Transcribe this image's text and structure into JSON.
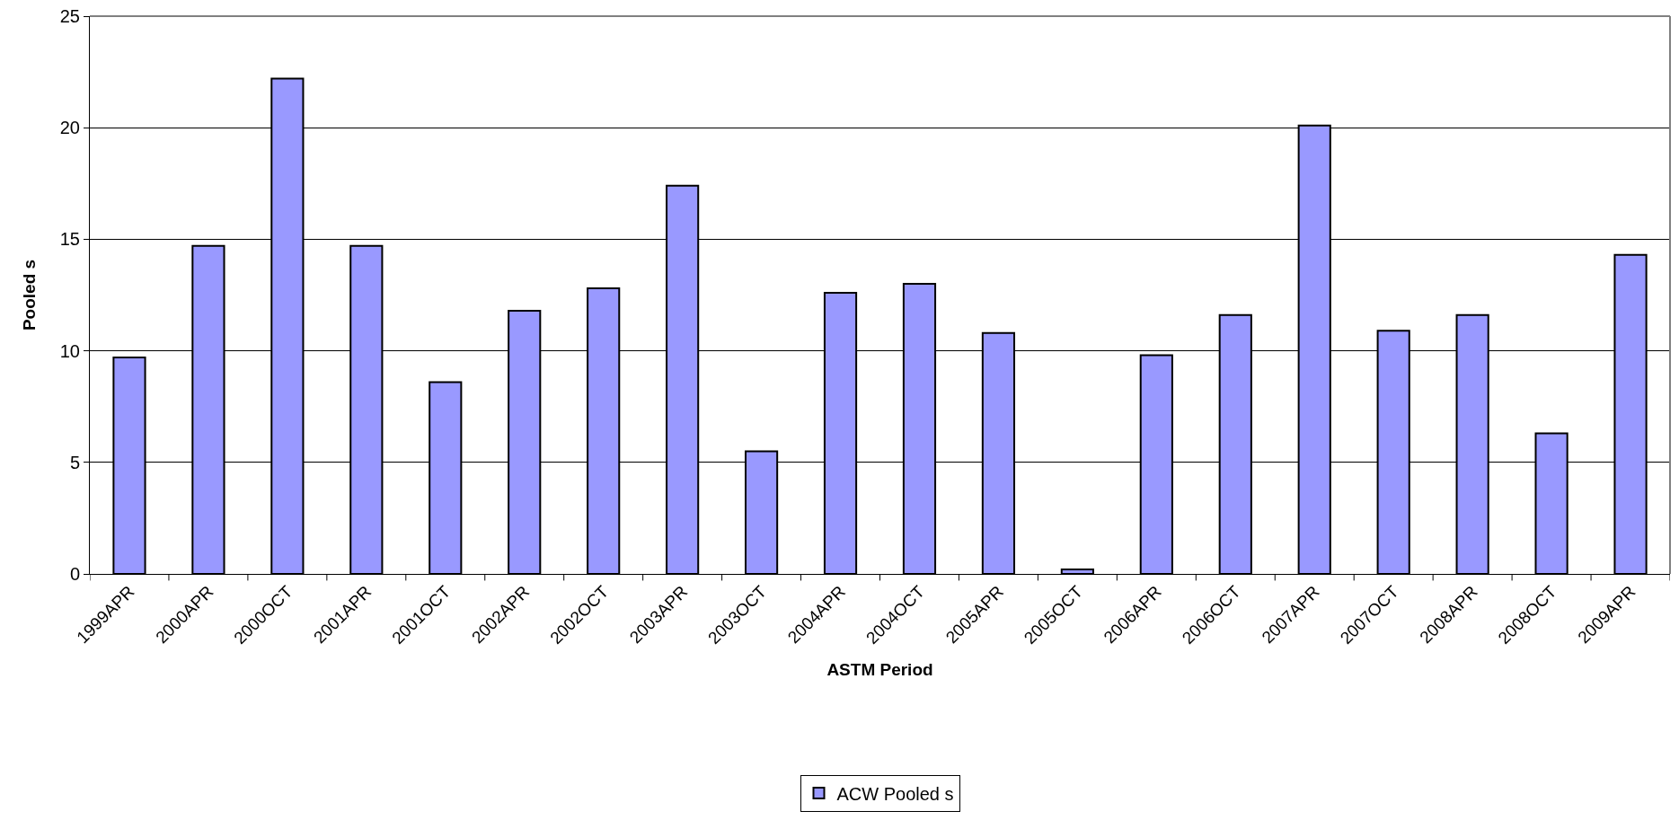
{
  "chart_data": {
    "type": "bar",
    "xlabel": "ASTM Period",
    "ylabel": "Pooled s",
    "categories": [
      "1999APR",
      "2000APR",
      "2000OCT",
      "2001APR",
      "2001OCT",
      "2002APR",
      "2002OCT",
      "2003APR",
      "2003OCT",
      "2004APR",
      "2004OCT",
      "2005APR",
      "2005OCT",
      "2006APR",
      "2006OCT",
      "2007APR",
      "2007OCT",
      "2008APR",
      "2008OCT",
      "2009APR"
    ],
    "series": [
      {
        "name": "ACW Pooled s",
        "color": "#9999ff",
        "values": [
          9.7,
          14.7,
          22.2,
          14.7,
          8.6,
          11.8,
          12.8,
          17.4,
          5.5,
          12.6,
          13.0,
          10.8,
          0.2,
          9.8,
          11.6,
          20.1,
          10.9,
          11.6,
          6.3,
          14.3
        ]
      }
    ],
    "ylim": [
      0,
      25
    ],
    "yticks": [
      0,
      5,
      10,
      15,
      20,
      25
    ],
    "grid": "y",
    "legend": "bottom"
  }
}
